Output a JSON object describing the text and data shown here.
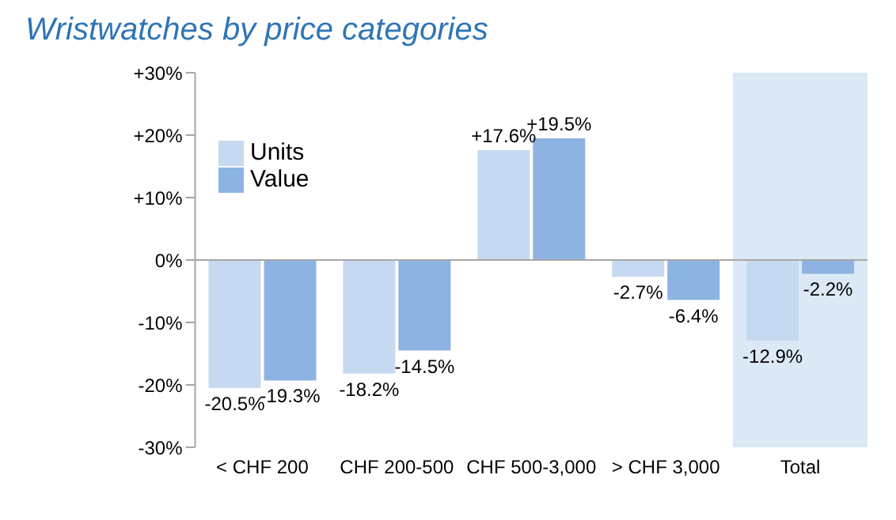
{
  "chart_data": {
    "type": "bar",
    "title": "Wristwatches by price categories",
    "categories": [
      "< CHF 200",
      "CHF 200-500",
      "CHF 500-3,000",
      "> CHF 3,000",
      "Total"
    ],
    "series": [
      {
        "name": "Units",
        "color": "#c6d9f1",
        "values": [
          -20.5,
          -18.2,
          17.6,
          -2.7,
          -12.9
        ],
        "value_labels": [
          "-20.5%",
          "-18.2%",
          "+17.6%",
          "-2.7%",
          "-12.9%"
        ]
      },
      {
        "name": "Value",
        "color": "#8db3e2",
        "values": [
          -19.3,
          -14.5,
          19.5,
          -6.4,
          -2.2
        ],
        "value_labels": [
          "-19.3%",
          "-14.5%",
          "+19.5%",
          "-6.4%",
          "-2.2%"
        ]
      }
    ],
    "ylim": [
      -30,
      30
    ],
    "yticks": [
      {
        "value": -30,
        "label": "-30%"
      },
      {
        "value": -20,
        "label": "-20%"
      },
      {
        "value": -10,
        "label": "-10%"
      },
      {
        "value": 0,
        "label": "0%"
      },
      {
        "value": 10,
        "label": "+10%"
      },
      {
        "value": 20,
        "label": "+20%"
      },
      {
        "value": 30,
        "label": "+30%"
      }
    ],
    "bands": [
      {
        "axis": "x",
        "from": "Total",
        "to": "Total",
        "color": "#dbe9f6"
      }
    ],
    "ref_lines": [
      {
        "axis": "y",
        "value": 0,
        "color": "#a6a6a6"
      }
    ],
    "grid": false,
    "legend": "top left"
  }
}
